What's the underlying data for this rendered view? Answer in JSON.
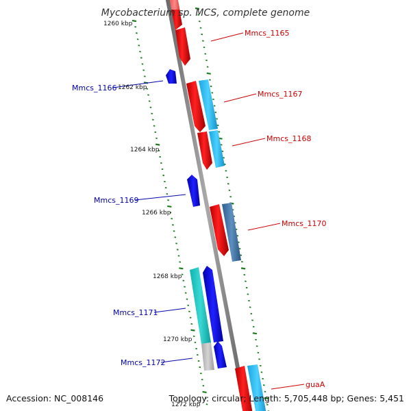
{
  "title": "Mycobacterium sp. MCS, complete genome",
  "footer": {
    "accession": "Accession: NC_008146",
    "topology": "Topology: circular; Length: 5,705,448 bp; Genes: 5,451"
  },
  "colors": {
    "backbone": "#8c8c8c",
    "ticks": "#1e7a1e",
    "forward_label": "#cc0000",
    "reverse_label": "#0000aa"
  },
  "scale_labels": [
    "1260 kbp",
    "1262 kbp",
    "1264 kbp",
    "1266 kbp",
    "1268 kbp",
    "1270 kbp",
    "1272 kbp"
  ],
  "gene_labels": [
    {
      "text": "Mmcs_1165",
      "strand": "forward"
    },
    {
      "text": "Mmcs_1166",
      "strand": "reverse"
    },
    {
      "text": "Mmcs_1167",
      "strand": "forward"
    },
    {
      "text": "Mmcs_1168",
      "strand": "forward"
    },
    {
      "text": "Mmcs_1169",
      "strand": "reverse"
    },
    {
      "text": "Mmcs_1170",
      "strand": "forward"
    },
    {
      "text": "Mmcs_1171",
      "strand": "reverse"
    },
    {
      "text": "Mmcs_1172",
      "strand": "reverse"
    },
    {
      "text": "guaA",
      "strand": "forward"
    }
  ]
}
